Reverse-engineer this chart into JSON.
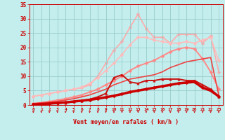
{
  "bg_color": "#c4eeee",
  "grid_color": "#98cccc",
  "xlabel": "Vent moyen/en rafales ( km/h )",
  "xlabel_color": "#cc0000",
  "tick_color": "#cc0000",
  "xlim": [
    -0.5,
    23.5
  ],
  "ylim": [
    0,
    35
  ],
  "yticks": [
    0,
    5,
    10,
    15,
    20,
    25,
    30,
    35
  ],
  "xticks": [
    0,
    1,
    2,
    3,
    4,
    5,
    6,
    7,
    8,
    9,
    10,
    11,
    12,
    13,
    14,
    15,
    16,
    17,
    18,
    19,
    20,
    21,
    22,
    23
  ],
  "curves": [
    {
      "x": [
        0,
        1,
        2,
        3,
        4,
        5,
        6,
        7,
        8,
        9,
        10,
        11,
        12,
        13,
        14,
        15,
        16,
        17,
        18,
        19,
        20,
        21,
        22,
        23
      ],
      "y": [
        0.2,
        0.3,
        0.5,
        0.7,
        0.9,
        1.2,
        1.5,
        1.8,
        2.2,
        2.7,
        3.2,
        3.8,
        4.5,
        5.0,
        5.5,
        6.0,
        6.5,
        7.0,
        7.5,
        7.8,
        8.0,
        6.0,
        5.0,
        3.0
      ],
      "color": "#cc0000",
      "lw": 2.5,
      "marker": "D",
      "ms": 2.5,
      "zorder": 6
    },
    {
      "x": [
        0,
        1,
        2,
        3,
        4,
        5,
        6,
        7,
        8,
        9,
        10,
        11,
        12,
        13,
        14,
        15,
        16,
        17,
        18,
        19,
        20,
        21,
        22,
        23
      ],
      "y": [
        0.2,
        0.3,
        0.4,
        0.6,
        0.8,
        1.1,
        1.5,
        2.0,
        2.8,
        4.0,
        9.5,
        10.5,
        8.0,
        7.5,
        8.5,
        8.5,
        9.0,
        9.0,
        9.0,
        8.5,
        8.5,
        7.0,
        5.5,
        3.0
      ],
      "color": "#cc1111",
      "lw": 1.4,
      "marker": "^",
      "ms": 2.5,
      "zorder": 5
    },
    {
      "x": [
        0,
        1,
        2,
        3,
        4,
        5,
        6,
        7,
        8,
        9,
        10,
        11,
        12,
        13,
        14,
        15,
        16,
        17,
        18,
        19,
        20,
        21,
        22,
        23
      ],
      "y": [
        0.5,
        0.8,
        1.0,
        1.3,
        1.7,
        2.2,
        2.8,
        3.5,
        4.5,
        5.5,
        7.0,
        8.0,
        9.0,
        9.5,
        10.0,
        10.5,
        11.5,
        13.0,
        14.0,
        15.0,
        15.5,
        16.0,
        16.5,
        3.5
      ],
      "color": "#ee4444",
      "lw": 1.2,
      "marker": null,
      "ms": 0,
      "zorder": 4
    },
    {
      "x": [
        0,
        1,
        2,
        3,
        4,
        5,
        6,
        7,
        8,
        9,
        10,
        11,
        12,
        13,
        14,
        15,
        16,
        17,
        18,
        19,
        20,
        21,
        22,
        23
      ],
      "y": [
        0.5,
        0.8,
        1.2,
        1.7,
        2.2,
        2.8,
        3.5,
        4.5,
        5.5,
        7.0,
        8.5,
        10.0,
        12.0,
        13.5,
        14.5,
        15.5,
        17.0,
        18.5,
        19.5,
        20.0,
        19.5,
        16.0,
        11.5,
        5.5
      ],
      "color": "#ff8888",
      "lw": 1.4,
      "marker": "D",
      "ms": 2.5,
      "zorder": 3
    },
    {
      "x": [
        0,
        1,
        2,
        3,
        4,
        5,
        6,
        7,
        8,
        9,
        10,
        11,
        12,
        13,
        14,
        15,
        16,
        17,
        18,
        19,
        20,
        21,
        22,
        23
      ],
      "y": [
        3.0,
        3.5,
        4.0,
        4.5,
        5.0,
        5.5,
        6.2,
        7.5,
        9.5,
        12.0,
        14.5,
        17.5,
        21.0,
        23.5,
        23.5,
        22.5,
        22.0,
        21.5,
        21.5,
        22.0,
        21.5,
        22.5,
        23.5,
        15.5
      ],
      "color": "#ffbbbb",
      "lw": 1.2,
      "marker": "D",
      "ms": 2.5,
      "zorder": 2
    },
    {
      "x": [
        0,
        1,
        2,
        3,
        4,
        5,
        6,
        7,
        8,
        9,
        10,
        11,
        12,
        13,
        14,
        15,
        16,
        17,
        18,
        19,
        20,
        21,
        22,
        23
      ],
      "y": [
        3.0,
        3.5,
        4.0,
        4.5,
        5.0,
        5.5,
        6.0,
        7.0,
        10.0,
        14.5,
        19.0,
        22.0,
        27.0,
        31.5,
        26.5,
        23.5,
        23.5,
        21.5,
        24.5,
        24.5,
        24.5,
        21.5,
        24.0,
        11.5
      ],
      "color": "#ffaaaa",
      "lw": 1.2,
      "marker": "D",
      "ms": 2.5,
      "zorder": 1
    }
  ],
  "wind_arrows": [
    0,
    1,
    2,
    3,
    4,
    5,
    6,
    7,
    8,
    9,
    10,
    11,
    12,
    13,
    14,
    15,
    16,
    17,
    18,
    19,
    20,
    21,
    22,
    23
  ]
}
